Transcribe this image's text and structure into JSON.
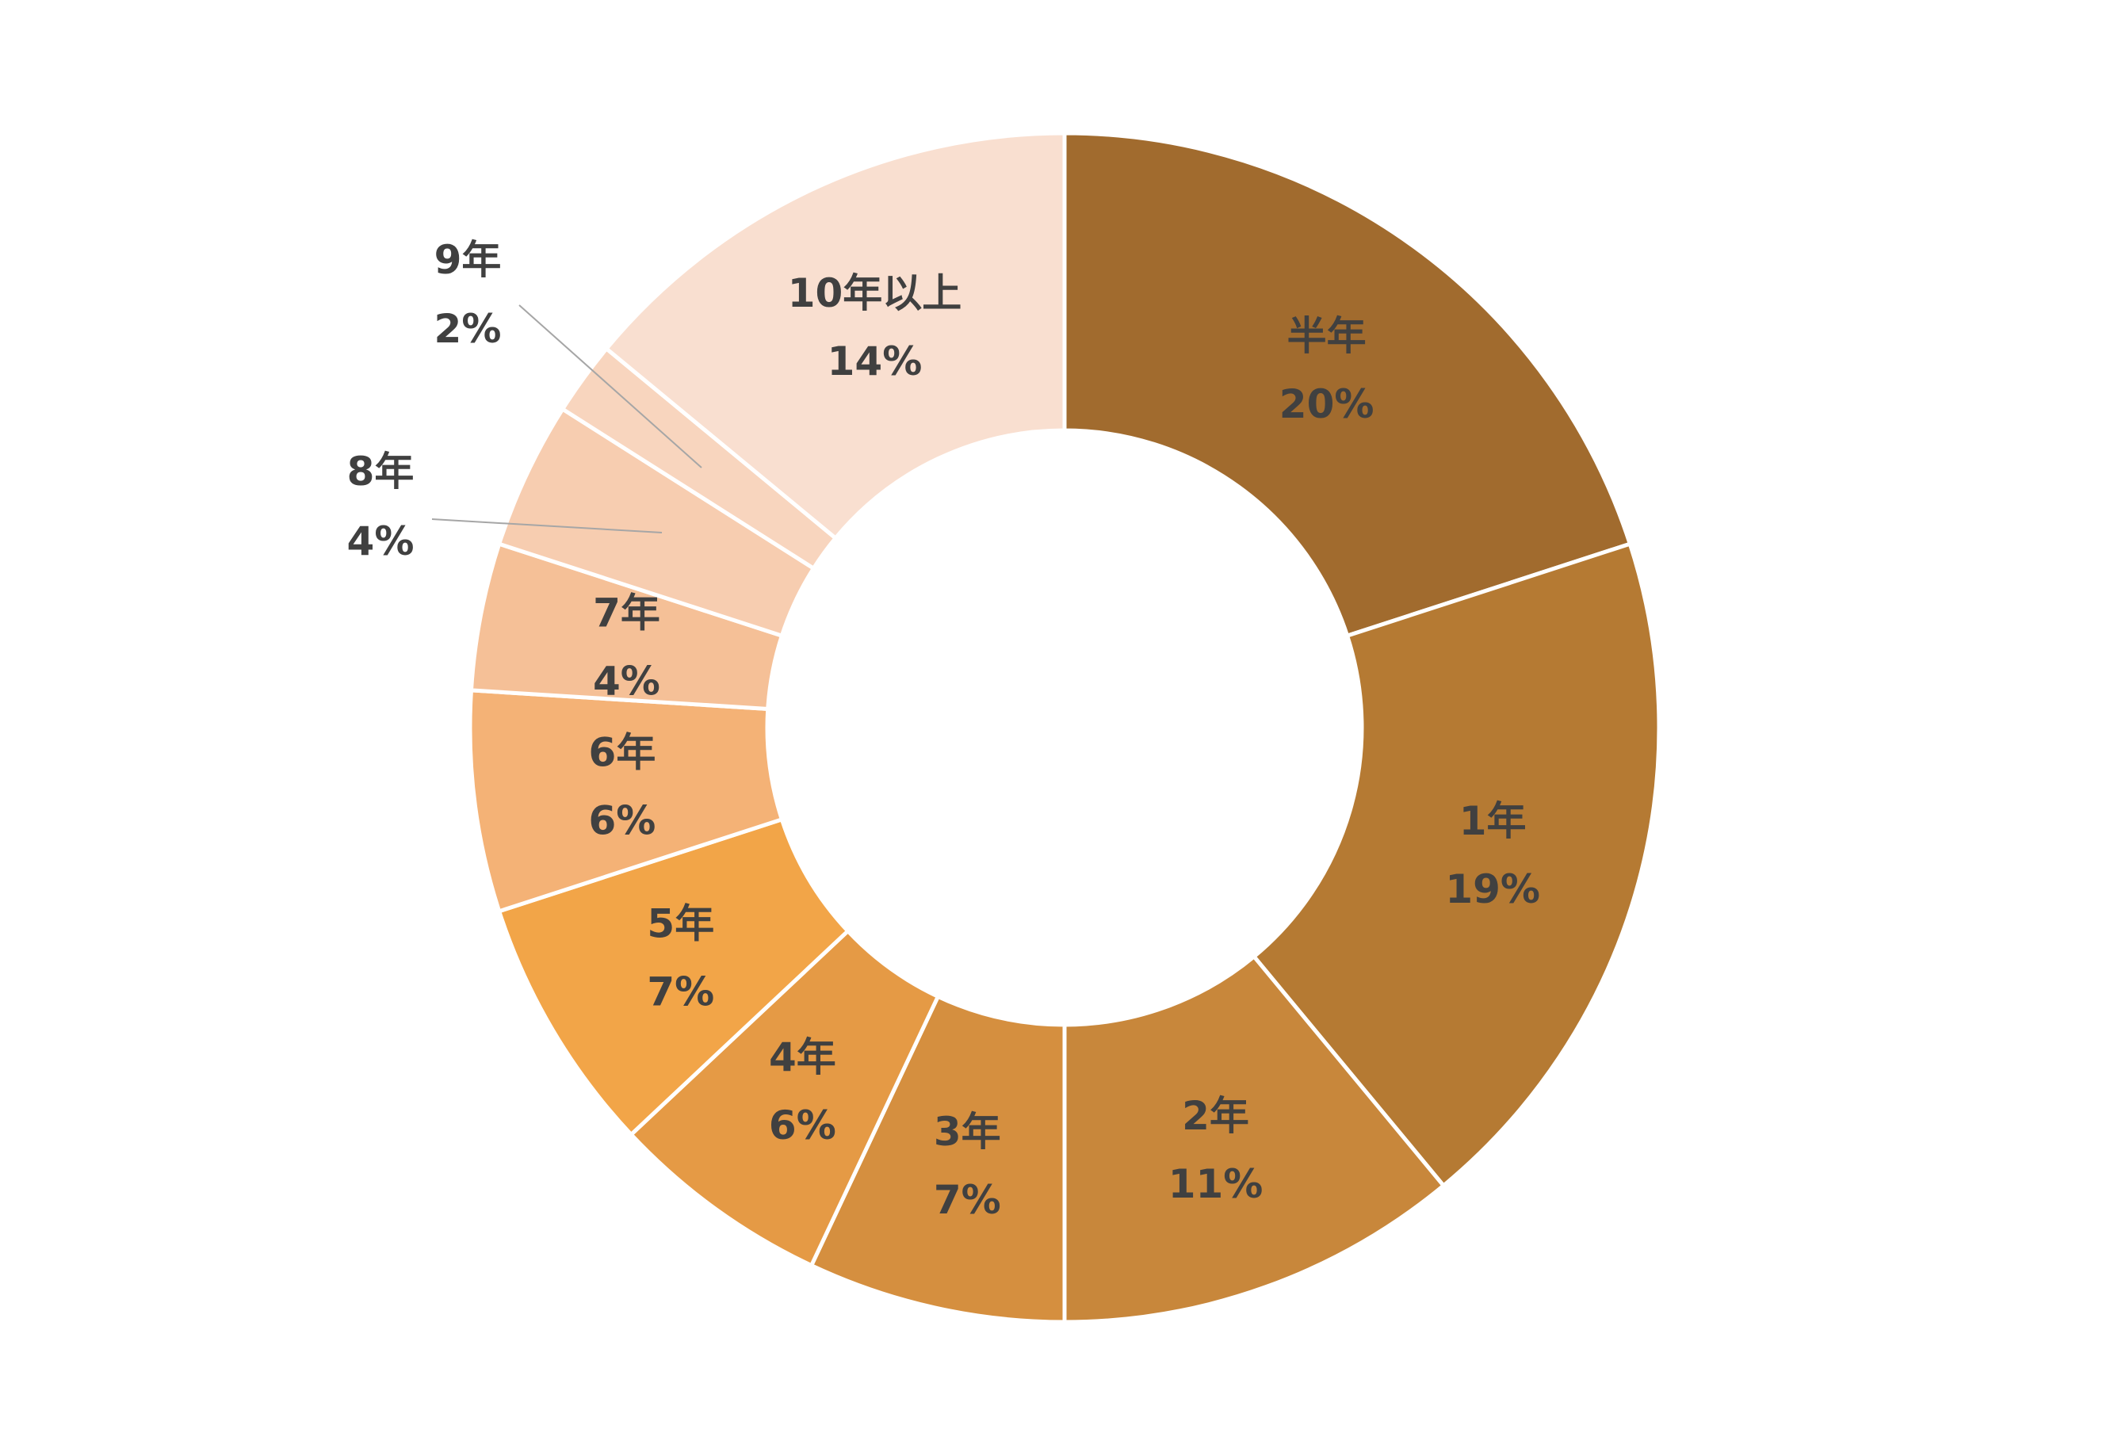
{
  "chart_data": {
    "type": "pie",
    "variant": "donut",
    "title": "",
    "categories": [
      "半年",
      "1年",
      "2年",
      "3年",
      "4年",
      "5年",
      "6年",
      "7年",
      "8年",
      "9年",
      "10年以上"
    ],
    "values": [
      20,
      19,
      11,
      7,
      6,
      7,
      6,
      4,
      4,
      2,
      14
    ],
    "labels": [
      "20%",
      "19%",
      "11%",
      "7%",
      "6%",
      "7%",
      "6%",
      "4%",
      "4%",
      "2%",
      "14%"
    ],
    "colors": [
      "#A16B2E",
      "#B57A33",
      "#C8873B",
      "#D58F3F",
      "#E59A45",
      "#F2A548",
      "#F4B276",
      "#F5C097",
      "#F7CDB0",
      "#F8D5BE",
      "#F9DFD0"
    ],
    "label_color": "#404040",
    "leader_line_color": "#A6A6A6",
    "legend": "none"
  }
}
